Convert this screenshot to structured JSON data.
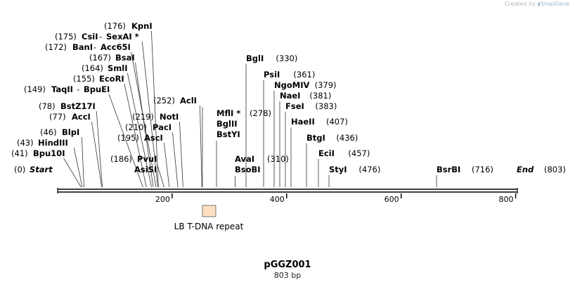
{
  "credit": {
    "prefix": "Created by",
    "brand": "SnapGene"
  },
  "map": {
    "name": "pGGZ001",
    "length_label": "803 bp",
    "ticks": [
      "200",
      "400",
      "600",
      "800"
    ],
    "feature": {
      "label": "LB T-DNA repeat",
      "color": "#fde0c0"
    },
    "sites": [
      {
        "name": "Start",
        "pos": "(0)",
        "italic": true
      },
      {
        "name": "Bpu10I",
        "pos": "(41)"
      },
      {
        "name": "HindIII",
        "pos": "(43)"
      },
      {
        "name": "BlpI",
        "pos": "(46)"
      },
      {
        "name": "AccI",
        "pos": "(77)"
      },
      {
        "name": "BstZ17I",
        "pos": "(78)"
      },
      {
        "name": "TaqII",
        "pos": "(149)",
        "alt": "BpuEI"
      },
      {
        "name": "EcoRI",
        "pos": "(155)"
      },
      {
        "name": "SmlI",
        "pos": "(164)"
      },
      {
        "name": "BsaI",
        "pos": "(167)"
      },
      {
        "name": "BanI",
        "pos": "(172)",
        "alt": "Acc65I"
      },
      {
        "name": "CsiI",
        "pos": "(175)",
        "alt": "SexAI *"
      },
      {
        "name": "KpnI",
        "pos": "(176)"
      },
      {
        "name": "PvuI",
        "pos": "(186)",
        "alt": "AsiSI"
      },
      {
        "name": "AscI",
        "pos": "(195)"
      },
      {
        "name": "PacI",
        "pos": "(210)"
      },
      {
        "name": "NotI",
        "pos": "(219)"
      },
      {
        "name": "AclI",
        "pos": "(252)"
      },
      {
        "name": "MflI *",
        "pos": "(278)",
        "alt2": "BglII",
        "alt3": "BstYI"
      },
      {
        "name": "AvaI",
        "pos": "(310)",
        "alt": "BsoBI"
      },
      {
        "name": "BglI",
        "pos": "(330)"
      },
      {
        "name": "PsiI",
        "pos": "(361)"
      },
      {
        "name": "NgoMIV",
        "pos": "(379)"
      },
      {
        "name": "NaeI",
        "pos": "(381)"
      },
      {
        "name": "FseI",
        "pos": "(383)"
      },
      {
        "name": "HaeII",
        "pos": "(407)"
      },
      {
        "name": "BtgI",
        "pos": "(436)"
      },
      {
        "name": "EciI",
        "pos": "(457)"
      },
      {
        "name": "StyI",
        "pos": "(476)"
      },
      {
        "name": "BsrBI",
        "pos": "(716)"
      },
      {
        "name": "End",
        "pos": "(803)",
        "italic": true
      }
    ]
  }
}
